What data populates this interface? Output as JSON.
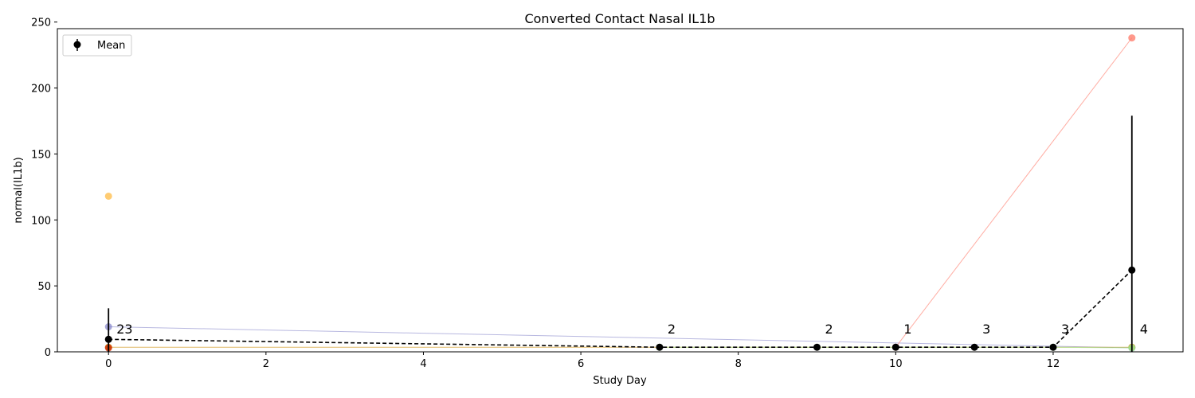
{
  "chart_data": {
    "type": "line",
    "title": "Converted Contact Nasal IL1b",
    "xlabel": "Study Day",
    "ylabel": "normal(IL1b)",
    "xlim": [
      -0.65,
      13.65
    ],
    "ylim": [
      0,
      245
    ],
    "xticks": [
      0,
      2,
      4,
      6,
      8,
      10,
      12
    ],
    "yticks": [
      0,
      50,
      100,
      150,
      200,
      250
    ],
    "grid": false,
    "legend": {
      "position": "top-left",
      "entries": [
        "Mean"
      ]
    },
    "subjects": [
      {
        "color": "#8888cc",
        "points": [
          [
            0,
            19
          ],
          [
            13,
            3
          ]
        ]
      },
      {
        "color": "#ffbb44",
        "points": [
          [
            0,
            118
          ]
        ]
      },
      {
        "color": "#cc8800",
        "points": [
          [
            0,
            3.5
          ],
          [
            13,
            3.5
          ]
        ]
      },
      {
        "color": "#cc2200",
        "points": [
          [
            0,
            3
          ]
        ]
      },
      {
        "color": "#ff7766",
        "points": [
          [
            10,
            3.5
          ],
          [
            13,
            238
          ]
        ]
      },
      {
        "color": "#99ee99",
        "points": [
          [
            7,
            3.5
          ],
          [
            12,
            3.5
          ],
          [
            13,
            3
          ]
        ]
      }
    ],
    "mean": {
      "name": "Mean",
      "color": "#000000",
      "x": [
        0,
        7,
        9,
        10,
        11,
        12,
        13
      ],
      "y": [
        9.5,
        3.5,
        3.5,
        3.5,
        3.5,
        3.5,
        62
      ],
      "err_upper": [
        33,
        null,
        null,
        null,
        null,
        null,
        179
      ],
      "err_lower": [
        0,
        null,
        null,
        null,
        null,
        null,
        0
      ]
    },
    "counts": [
      {
        "x": 0,
        "label": "23"
      },
      {
        "x": 7,
        "label": "2"
      },
      {
        "x": 9,
        "label": "2"
      },
      {
        "x": 10,
        "label": "1"
      },
      {
        "x": 11,
        "label": "3"
      },
      {
        "x": 12,
        "label": "3"
      },
      {
        "x": 13,
        "label": "4"
      }
    ]
  }
}
